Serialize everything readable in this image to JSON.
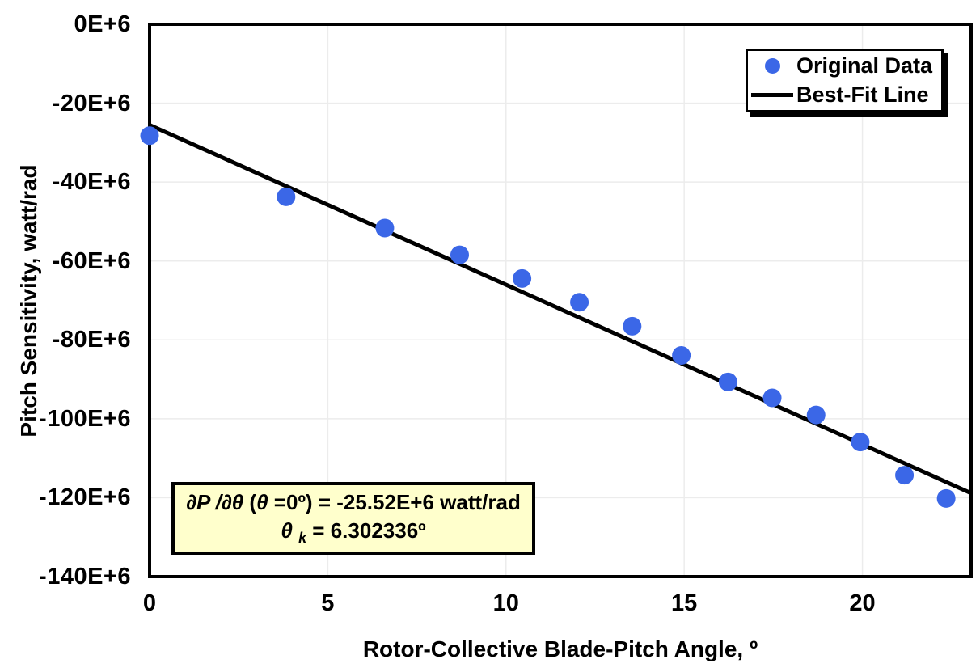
{
  "chart_data": {
    "type": "scatter",
    "xlabel": "Rotor-Collective Blade-Pitch Angle, º",
    "ylabel": "Pitch Sensitivity, watt/rad",
    "xlim": [
      0,
      23.05
    ],
    "ylim_E6": [
      -140,
      0
    ],
    "grid": true,
    "x_ticks": {
      "values": [
        0,
        5,
        10,
        15,
        20
      ],
      "labels": [
        "0",
        "5",
        "10",
        "15",
        "20"
      ]
    },
    "y_ticks": {
      "values_E6": [
        0,
        -20,
        -40,
        -60,
        -80,
        -100,
        -120,
        -140
      ],
      "labels": [
        "0E+6",
        "-20E+6",
        "-40E+6",
        "-60E+6",
        "-80E+6",
        "-100E+6",
        "-120E+6",
        "-140E+6"
      ]
    },
    "series": [
      {
        "name": "Original Data",
        "type": "scatter",
        "color": "#3B67E7",
        "x": [
          0.0,
          3.83,
          6.6,
          8.7,
          10.45,
          12.06,
          13.54,
          14.92,
          16.23,
          17.47,
          18.7,
          19.94,
          21.18,
          22.35
        ],
        "y_E6": [
          -28.24,
          -43.73,
          -51.66,
          -58.44,
          -64.44,
          -70.46,
          -76.53,
          -83.94,
          -90.67,
          -94.71,
          -99.04,
          -105.9,
          -114.3,
          -120.2
        ]
      },
      {
        "name": "Best-Fit Line",
        "type": "line",
        "color": "#000000",
        "fit": {
          "intercept_E6": -25.52,
          "theta_k_deg": 6.302336
        }
      }
    ],
    "legend": {
      "position": "top-right",
      "items": [
        {
          "label": "Original Data",
          "marker": "dot",
          "color": "#3B67E7"
        },
        {
          "label": "Best-Fit Line",
          "marker": "line",
          "color": "#000000"
        }
      ]
    },
    "annotation": {
      "bg_color": "#FFFFCC",
      "line1": "∂P /∂θ (θ =0º) = -25.52E+6 watt/rad",
      "line1_parts": [
        {
          "text": "∂P /∂θ ",
          "italic": true,
          "sub": false
        },
        {
          "text": "(",
          "italic": false,
          "sub": false
        },
        {
          "text": "θ ",
          "italic": true,
          "sub": false
        },
        {
          "text": "=0º) = -25.52E+6 watt/rad",
          "italic": false,
          "sub": false
        }
      ],
      "line2": "θk = 6.302336º",
      "line2_parts": [
        {
          "text": "θ ",
          "italic": true,
          "sub": false
        },
        {
          "text": "k",
          "italic": true,
          "sub": true
        },
        {
          "text": " = 6.302336º",
          "italic": false,
          "sub": false
        }
      ]
    },
    "colors": {
      "grid": "#ECECEC",
      "frame": "#000000",
      "annotation_bg": "#FFFFCC"
    }
  }
}
